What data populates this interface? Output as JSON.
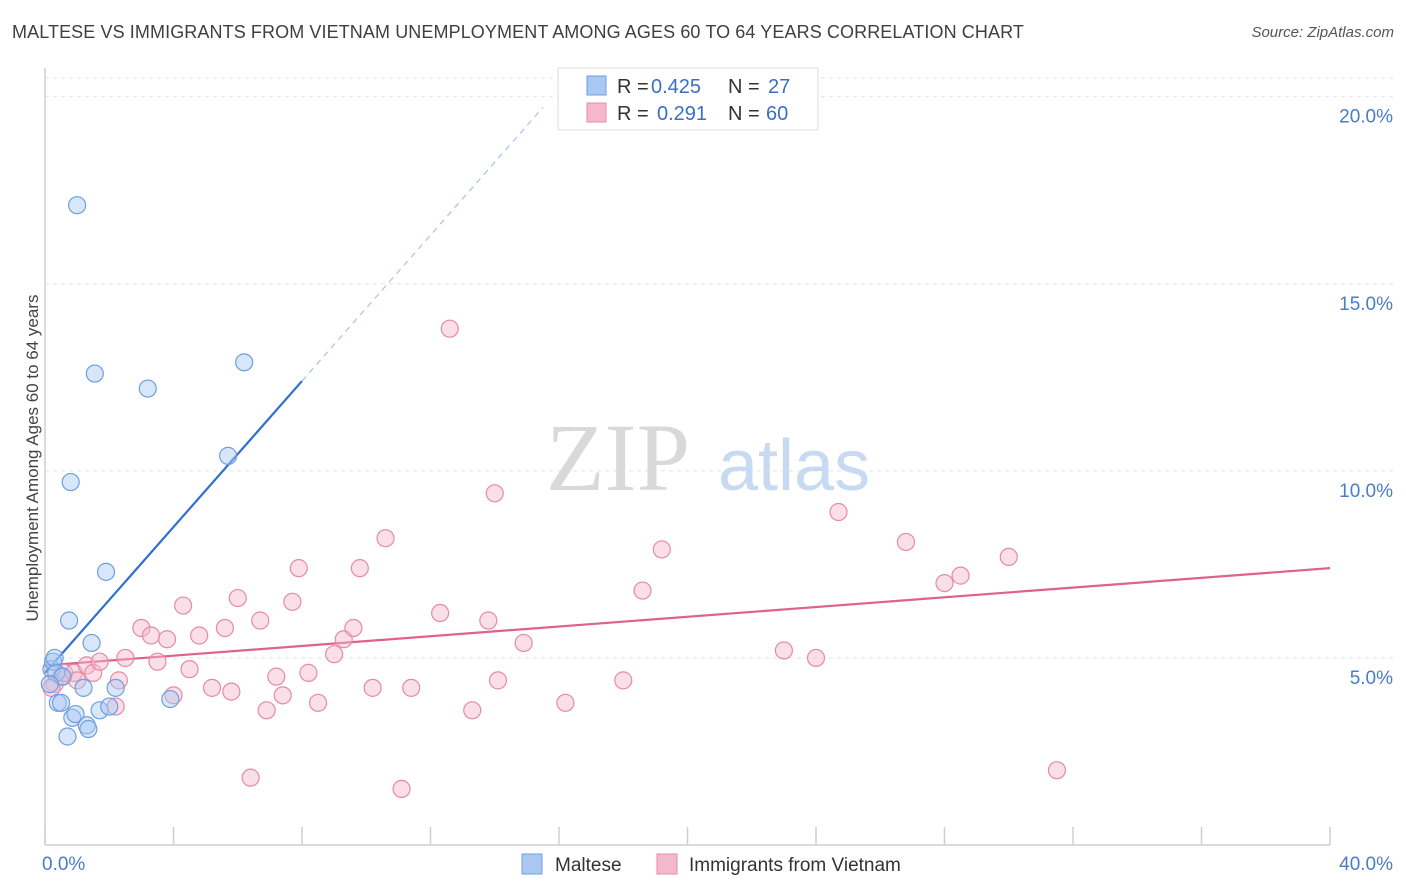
{
  "title": "MALTESE VS IMMIGRANTS FROM VIETNAM UNEMPLOYMENT AMONG AGES 60 TO 64 YEARS CORRELATION CHART",
  "source": "Source: ZipAtlas.com",
  "watermark": {
    "zip": "ZIP",
    "atlas": "atlas"
  },
  "colors": {
    "blue_fill": "#a9c8f2",
    "blue_stroke": "#6f9ee0",
    "blue_line": "#2f6fd0",
    "pink_fill": "#f5b8cb",
    "pink_stroke": "#e58aa8",
    "pink_line": "#e0608e",
    "grid": "#e3e3e3",
    "axis_label": "#4a7cc9"
  },
  "chart_data": {
    "type": "scatter",
    "title": "MALTESE VS IMMIGRANTS FROM VIETNAM UNEMPLOYMENT AMONG AGES 60 TO 64 YEARS CORRELATION CHART",
    "xlabel": "",
    "ylabel": "Unemployment Among Ages 60 to 64 years",
    "xlim": [
      0,
      40
    ],
    "ylim": [
      0,
      20.5
    ],
    "x_tick_labels": [
      "0.0%",
      "40.0%"
    ],
    "y_ticks": [
      5,
      10,
      15,
      20
    ],
    "y_tick_labels": [
      "5.0%",
      "10.0%",
      "15.0%",
      "20.0%"
    ],
    "legend": [
      {
        "series": "Maltese",
        "r_label": "R =",
        "r_value": "0.425",
        "n_label": "N =",
        "n_value": "27"
      },
      {
        "series": "Immigrants from Vietnam",
        "r_label": "R =",
        "r_value": "0.291",
        "n_label": "N =",
        "n_value": "60"
      }
    ],
    "series": [
      {
        "name": "Maltese",
        "color": "blue",
        "trend": {
          "x0": 0,
          "y0": 4.6,
          "x1": 8.0,
          "y1": 12.4,
          "dash_to_x": 15.5
        },
        "points": [
          [
            0.2,
            4.7
          ],
          [
            0.25,
            4.9
          ],
          [
            0.3,
            5.0
          ],
          [
            0.35,
            4.6
          ],
          [
            0.4,
            3.8
          ],
          [
            0.5,
            3.8
          ],
          [
            0.55,
            4.5
          ],
          [
            0.7,
            2.9
          ],
          [
            0.75,
            6.0
          ],
          [
            0.8,
            9.7
          ],
          [
            0.85,
            3.4
          ],
          [
            0.95,
            3.5
          ],
          [
            1.0,
            17.1
          ],
          [
            1.2,
            4.2
          ],
          [
            1.3,
            3.2
          ],
          [
            1.35,
            3.1
          ],
          [
            1.45,
            5.4
          ],
          [
            1.55,
            12.6
          ],
          [
            1.7,
            3.6
          ],
          [
            1.9,
            7.3
          ],
          [
            2.0,
            3.7
          ],
          [
            2.2,
            4.2
          ],
          [
            3.2,
            12.2
          ],
          [
            3.9,
            3.9
          ],
          [
            5.7,
            10.4
          ],
          [
            6.2,
            12.9
          ],
          [
            0.15,
            4.3
          ]
        ]
      },
      {
        "name": "Immigrants from Vietnam",
        "color": "pink",
        "trend": {
          "x0": 0,
          "y0": 4.8,
          "x1": 40,
          "y1": 7.4
        },
        "points": [
          [
            0.3,
            4.3
          ],
          [
            0.5,
            4.5
          ],
          [
            0.6,
            4.6
          ],
          [
            0.9,
            4.6
          ],
          [
            1.0,
            4.4
          ],
          [
            1.3,
            4.8
          ],
          [
            1.5,
            4.6
          ],
          [
            1.7,
            4.9
          ],
          [
            2.2,
            3.7
          ],
          [
            2.3,
            4.4
          ],
          [
            2.5,
            5.0
          ],
          [
            3.0,
            5.8
          ],
          [
            3.3,
            5.6
          ],
          [
            3.5,
            4.9
          ],
          [
            3.8,
            5.5
          ],
          [
            4.0,
            4.0
          ],
          [
            4.3,
            6.4
          ],
          [
            4.5,
            4.7
          ],
          [
            4.8,
            5.6
          ],
          [
            5.2,
            4.2
          ],
          [
            5.6,
            5.8
          ],
          [
            5.8,
            4.1
          ],
          [
            6.0,
            6.6
          ],
          [
            6.4,
            1.8
          ],
          [
            6.7,
            6.0
          ],
          [
            6.9,
            3.6
          ],
          [
            7.2,
            4.5
          ],
          [
            7.4,
            4.0
          ],
          [
            7.7,
            6.5
          ],
          [
            7.9,
            7.4
          ],
          [
            8.2,
            4.6
          ],
          [
            8.5,
            3.8
          ],
          [
            9.0,
            5.1
          ],
          [
            9.3,
            5.5
          ],
          [
            9.6,
            5.8
          ],
          [
            9.8,
            7.4
          ],
          [
            10.2,
            4.2
          ],
          [
            10.6,
            8.2
          ],
          [
            11.1,
            1.5
          ],
          [
            11.4,
            4.2
          ],
          [
            12.3,
            6.2
          ],
          [
            12.6,
            13.8
          ],
          [
            13.3,
            3.6
          ],
          [
            13.8,
            6.0
          ],
          [
            14.0,
            9.4
          ],
          [
            14.1,
            4.4
          ],
          [
            14.9,
            5.4
          ],
          [
            16.2,
            3.8
          ],
          [
            18.0,
            4.4
          ],
          [
            18.6,
            6.8
          ],
          [
            19.2,
            7.9
          ],
          [
            23.0,
            5.2
          ],
          [
            24.0,
            5.0
          ],
          [
            24.7,
            8.9
          ],
          [
            26.8,
            8.1
          ],
          [
            28.0,
            7.0
          ],
          [
            28.5,
            7.2
          ],
          [
            30.0,
            7.7
          ],
          [
            31.5,
            2.0
          ],
          [
            0.2,
            4.2
          ]
        ]
      }
    ]
  },
  "bottom_legend": [
    "Maltese",
    "Immigrants from Vietnam"
  ]
}
